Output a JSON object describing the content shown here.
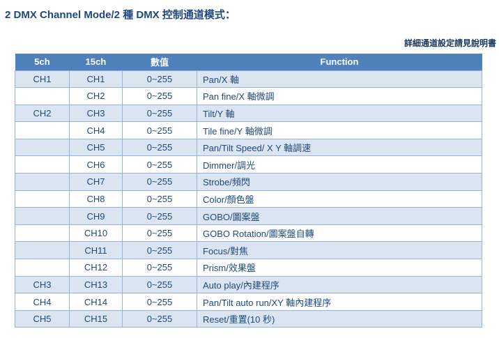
{
  "page": {
    "title": "2 DMX Channel Mode/2 種 DMX 控制通道模式：",
    "note": "詳細通道設定請見說明書"
  },
  "table": {
    "headers": [
      "5ch",
      "15ch",
      "數值",
      "Function"
    ],
    "rows": [
      {
        "ch5": "CH1",
        "ch15": "CH1",
        "value": "0~255",
        "function": "Pan/X 軸"
      },
      {
        "ch5": "",
        "ch15": "CH2",
        "value": "0~255",
        "function": "Pan fine/X 軸微調"
      },
      {
        "ch5": "CH2",
        "ch15": "CH3",
        "value": "0~255",
        "function": "Tilt/Y 軸"
      },
      {
        "ch5": "",
        "ch15": "CH4",
        "value": "0~255",
        "function": "Tile fine/Y 軸微調"
      },
      {
        "ch5": "",
        "ch15": "CH5",
        "value": "0~255",
        "function": "Pan/Tilt Speed/ X Y 軸調速"
      },
      {
        "ch5": "",
        "ch15": "CH6",
        "value": "0~255",
        "function": "Dimmer/調光"
      },
      {
        "ch5": "",
        "ch15": "CH7",
        "value": "0~255",
        "function": "Strobe/頻閃"
      },
      {
        "ch5": "",
        "ch15": "CH8",
        "value": "0~255",
        "function": "Color/顏色盤"
      },
      {
        "ch5": "",
        "ch15": "CH9",
        "value": "0~255",
        "function": "GOBO/圖案盤"
      },
      {
        "ch5": "",
        "ch15": "CH10",
        "value": "0~255",
        "function": "GOBO Rotation/圖案盤自轉"
      },
      {
        "ch5": "",
        "ch15": "CH11",
        "value": "0~255",
        "function": "Focus/對焦"
      },
      {
        "ch5": "",
        "ch15": "CH12",
        "value": "0~255",
        "function": "Prism/效果盤"
      },
      {
        "ch5": "CH3",
        "ch15": "CH13",
        "value": "0~255",
        "function": "Auto play/內建程序"
      },
      {
        "ch5": "CH4",
        "ch15": "CH14",
        "value": "0~255",
        "function": "Pan/Tilt auto run/XY 軸內建程序"
      },
      {
        "ch5": "CH5",
        "ch15": "CH15",
        "value": "0~255",
        "function": "Reset/重置(10 秒)"
      }
    ],
    "colors": {
      "header_bg": "#4F81BD",
      "header_text": "#FFFFFF",
      "stripe_bg": "#DBE5F1",
      "border": "#95B3D7",
      "cell_text": "#1F497D",
      "title_text": "#1F497D",
      "note_text": "#17375D"
    }
  }
}
